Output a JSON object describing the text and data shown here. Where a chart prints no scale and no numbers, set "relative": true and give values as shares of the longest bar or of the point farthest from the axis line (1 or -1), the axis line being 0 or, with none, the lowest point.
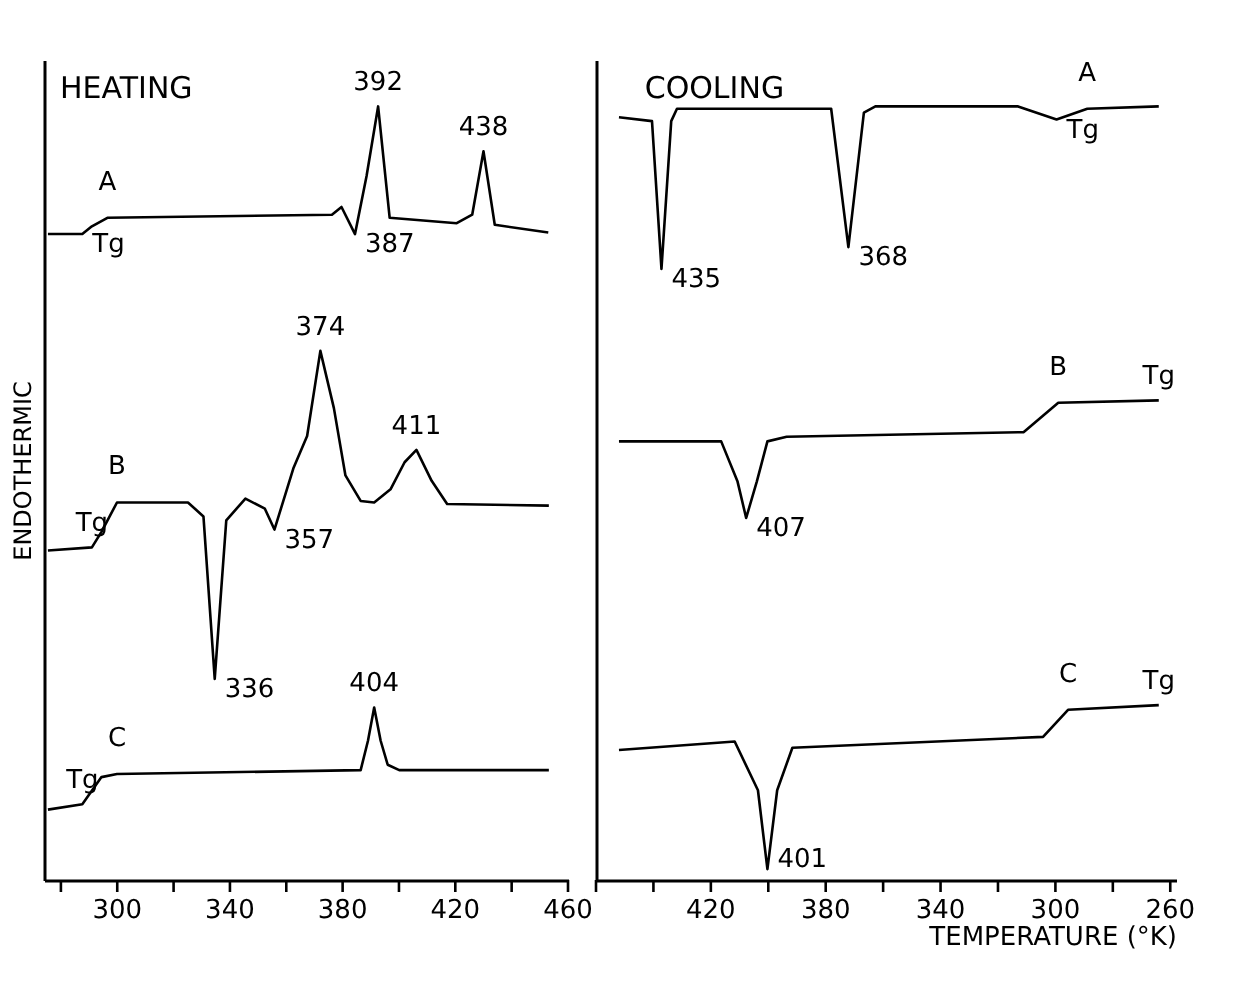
{
  "chart_data": [
    {
      "type": "line",
      "title": "HEATING",
      "ylabel": "ENDOTHERMIC",
      "relative": true,
      "legend": false,
      "grid": false,
      "tick_labels": "x",
      "marker": "none",
      "line_style": "solid",
      "xlim": [
        274,
        460
      ],
      "xticks": [
        {
          "value": 280,
          "label": null
        },
        300,
        {
          "value": 320,
          "label": null
        },
        340,
        {
          "value": 360,
          "label": null
        },
        380,
        {
          "value": 400,
          "label": null
        },
        420,
        {
          "value": 440,
          "label": null
        },
        460
      ],
      "series": [
        {
          "name": "A",
          "color": "#000000",
          "x": [
            275.4,
            287.6,
            291,
            296.5,
            376.2,
            379.6,
            384.4,
            388.5,
            392.6,
            396.7,
            420.5,
            426,
            430,
            434,
            453
          ],
          "values": [
            0.835,
            0.835,
            0.845,
            0.856,
            0.86,
            0.87,
            0.835,
            0.91,
            1.0,
            0.856,
            0.849,
            0.86,
            0.942,
            0.847,
            0.837
          ]
        },
        {
          "name": "B",
          "color": "#000000",
          "x": [
            275.4,
            291,
            294.4,
            299.9,
            325.1,
            330.6,
            334.6,
            338.7,
            345.5,
            352.4,
            355.8,
            359.2,
            362.6,
            367.4,
            372.1,
            376.9,
            381,
            386.4,
            391.2,
            397,
            402,
            406.2,
            411.6,
            417.1,
            453.2
          ],
          "values": [
            0.426,
            0.43,
            0.45,
            0.488,
            0.488,
            0.47,
            0.26,
            0.465,
            0.493,
            0.48,
            0.453,
            0.493,
            0.533,
            0.574,
            0.684,
            0.61,
            0.523,
            0.49,
            0.488,
            0.505,
            0.54,
            0.556,
            0.516,
            0.486,
            0.484
          ]
        },
        {
          "name": "C",
          "color": "#000000",
          "x": [
            275.4,
            287.6,
            294.4,
            299.9,
            386.4,
            389,
            391.2,
            393.5,
            396,
            400.1,
            453.2
          ],
          "values": [
            0.091,
            0.098,
            0.133,
            0.137,
            0.142,
            0.18,
            0.223,
            0.18,
            0.149,
            0.142,
            0.142
          ]
        }
      ],
      "annotations": [
        {
          "text": "392",
          "x": 392.6,
          "y": 1.0
        },
        {
          "text": "387",
          "x": 384.4,
          "y": 0.835
        },
        {
          "text": "438",
          "x": 430,
          "y": 0.942
        },
        {
          "text": "374",
          "x": 372.1,
          "y": 0.684
        },
        {
          "text": "411",
          "x": 406.2,
          "y": 0.556
        },
        {
          "text": "357",
          "x": 355.8,
          "y": 0.453
        },
        {
          "text": "336",
          "x": 334.6,
          "y": 0.26
        },
        {
          "text": "404",
          "x": 391.2,
          "y": 0.223
        },
        {
          "text": "Tg",
          "x": 287.6,
          "y": 0.835
        },
        {
          "text": "Tg",
          "x": 291,
          "y": 0.43
        },
        {
          "text": "Tg",
          "x": 287.6,
          "y": 0.098
        }
      ]
    },
    {
      "type": "line",
      "title": "COOLING",
      "xlabel": "TEMPERATURE (°K)",
      "relative": true,
      "legend": false,
      "grid": false,
      "tick_labels": "x",
      "marker": "none",
      "line_style": "solid",
      "xlim": [
        460,
        258
      ],
      "xticks": [
        {
          "value": 460,
          "label": null
        },
        {
          "value": 440,
          "label": null
        },
        420,
        {
          "value": 400,
          "label": null
        },
        380,
        {
          "value": 360,
          "label": null
        },
        340,
        {
          "value": 320,
          "label": null
        },
        300,
        {
          "value": 280,
          "label": null
        },
        260
      ],
      "series": [
        {
          "name": "A",
          "color": "#000000",
          "x": [
            452,
            440.5,
            437.2,
            433.8,
            431.8,
            378.1,
            372.1,
            366.7,
            362.7,
            313,
            299.6,
            288.9,
            264
          ],
          "values": [
            0.986,
            0.981,
            0.79,
            0.981,
            0.997,
            0.997,
            0.818,
            0.992,
            1.0,
            1.0,
            0.983,
            0.997,
            1.0
          ]
        },
        {
          "name": "B",
          "color": "#000000",
          "x": [
            452,
            416.4,
            410.7,
            407.7,
            404,
            400.3,
            393.6,
            311,
            299,
            264
          ],
          "values": [
            0.567,
            0.567,
            0.515,
            0.468,
            0.515,
            0.567,
            0.573,
            0.579,
            0.617,
            0.62
          ]
        },
        {
          "name": "C",
          "color": "#000000",
          "x": [
            452,
            411.7,
            403.6,
            400.3,
            396.9,
            391.6,
            304.3,
            295.6,
            264
          ],
          "values": [
            0.168,
            0.179,
            0.116,
            0.014,
            0.116,
            0.171,
            0.185,
            0.22,
            0.226
          ]
        }
      ],
      "annotations": [
        {
          "text": "435",
          "x": 437.2,
          "y": 0.79
        },
        {
          "text": "368",
          "x": 372.1,
          "y": 0.818
        },
        {
          "text": "407",
          "x": 407.7,
          "y": 0.468
        },
        {
          "text": "401",
          "x": 400.3,
          "y": 0.014
        },
        {
          "text": "Tg",
          "x": 299.6,
          "y": 0.983
        },
        {
          "text": "Tg",
          "x": 264,
          "y": 0.62
        },
        {
          "text": "Tg",
          "x": 264,
          "y": 0.226
        }
      ]
    }
  ]
}
